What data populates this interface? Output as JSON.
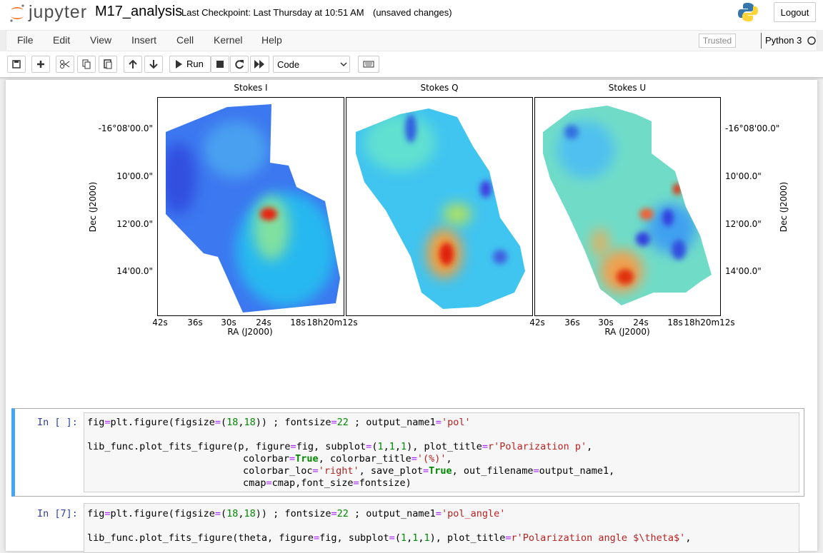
{
  "header": {
    "logo_text": "jupyter",
    "notebook_name": "M17_analysis",
    "checkpoint": "Last Checkpoint: Last Thursday at 10:51 AM",
    "unsaved": "(unsaved changes)",
    "logout": "Logout"
  },
  "menu": {
    "items": [
      "File",
      "Edit",
      "View",
      "Insert",
      "Cell",
      "Kernel",
      "Help"
    ],
    "trusted": "Trusted",
    "kernel": "Python 3"
  },
  "toolbar": {
    "run": "Run",
    "cell_type": "Code"
  },
  "figure": {
    "panels": [
      {
        "title": "Stokes I"
      },
      {
        "title": "Stokes Q"
      },
      {
        "title": "Stokes U"
      }
    ],
    "dec_ticks": [
      "-16°08'00.0\"",
      "10'00.0\"",
      "12'00.0\"",
      "14'00.0\""
    ],
    "ra_ticks": [
      "42s",
      "36s",
      "30s",
      "24s",
      "18s",
      "18h20m12s"
    ],
    "dec_label": "Dec (J2000)",
    "ra_label": "RA (J2000)"
  },
  "cells": [
    {
      "prompt": "In [ ]:",
      "lines": [
        "fig=plt.figure(figsize=(18,18)) ; fontsize=22 ; output_name1='pol'",
        "lib_func.plot_fits_figure(p, figure=fig, subplot=(1,1,1), plot_title=r'Polarization p',",
        "colorbar=True, colorbar_title='(%)',",
        "colorbar_loc='right', save_plot=True, out_filename=output_name1,",
        "cmap=cmap,font_size=fontsize)"
      ]
    },
    {
      "prompt": "In [7]:",
      "lines": [
        "fig=plt.figure(figsize=(18,18)) ; fontsize=22 ; output_name1='pol_angle'",
        "lib_func.plot_fits_figure(theta, figure=fig, subplot=(1,1,1), plot_title=r'Polarization angle $\\theta$',"
      ]
    }
  ]
}
